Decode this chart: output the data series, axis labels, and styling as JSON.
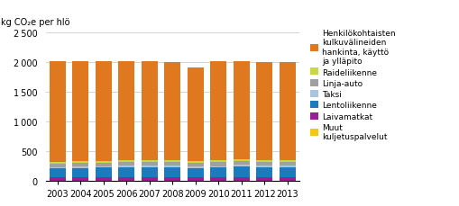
{
  "years": [
    2003,
    2004,
    2005,
    2006,
    2007,
    2008,
    2009,
    2010,
    2011,
    2012,
    2013
  ],
  "categories": [
    "Muut kuljetuspalvelut",
    "Laivamatkat",
    "Lentoliikenne",
    "Taksi",
    "Linja-auto",
    "Raideliikenne",
    "Henkilökohtaisten kulkuvälineiden hankinta, käyttö ja ylläpito"
  ],
  "colors": [
    "#f5c518",
    "#9b1f8e",
    "#1c7bbf",
    "#a8c4e0",
    "#a0a0a0",
    "#c8d840",
    "#e07820"
  ],
  "data": {
    "Muut kuljetuspalvelut": [
      10,
      10,
      10,
      10,
      10,
      10,
      10,
      10,
      10,
      10,
      10
    ],
    "Laivamatkat": [
      55,
      60,
      55,
      55,
      55,
      55,
      55,
      50,
      50,
      50,
      50
    ],
    "Lentoliikenne": [
      145,
      150,
      160,
      170,
      175,
      175,
      155,
      170,
      195,
      175,
      175
    ],
    "Taksi": [
      25,
      25,
      25,
      25,
      25,
      25,
      25,
      25,
      25,
      25,
      25
    ],
    "Linja-auto": [
      65,
      65,
      65,
      65,
      65,
      65,
      65,
      65,
      65,
      65,
      65
    ],
    "Raideliikenne": [
      30,
      30,
      30,
      30,
      30,
      30,
      30,
      30,
      30,
      30,
      30
    ],
    "Henkilökohtaisten kulkuvälineiden hankinta, käyttö ja ylläpito": [
      1680,
      1670,
      1665,
      1665,
      1660,
      1645,
      1575,
      1660,
      1635,
      1645,
      1645
    ]
  },
  "ylabel": "kg CO₂e per hlö",
  "ylim": [
    0,
    2500
  ],
  "yticks": [
    0,
    500,
    1000,
    1500,
    2000,
    2500
  ],
  "background_color": "#ffffff",
  "grid_color": "#cccccc",
  "legend_labels": [
    "Henkilökohtaisten\nkulkuvälineiden\nhankinta, käyttö\nja ylläpito",
    "Raideliikenne",
    "Linja-auto",
    "Taksi",
    "Lentoliikenne",
    "Laivamatkat",
    "Muut\nkuljetuspalvelut"
  ],
  "legend_colors": [
    "#e07820",
    "#c8d840",
    "#a0a0a0",
    "#a8c4e0",
    "#1c7bbf",
    "#9b1f8e",
    "#f5c518"
  ]
}
